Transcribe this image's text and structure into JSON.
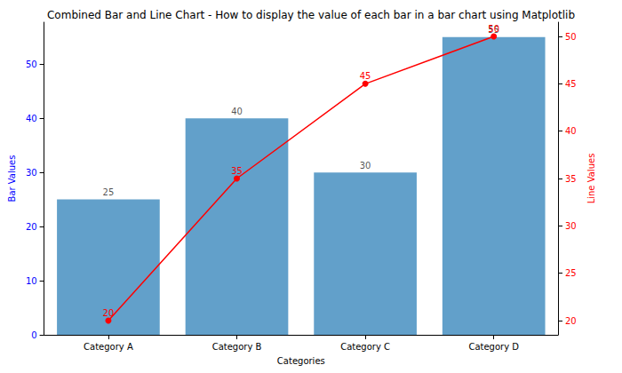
{
  "chart_data": {
    "type": "bar",
    "title": "Combined Bar and Line Chart - How to display the value of each bar in a bar chart using Matplotlib",
    "xlabel": "Categories",
    "ylabel": "Bar Values",
    "y2label": "Line Values",
    "categories": [
      "Category A",
      "Category B",
      "Category C",
      "Category D"
    ],
    "series": [
      {
        "type": "bar",
        "color": "#1f77b4",
        "values": [
          25,
          40,
          30,
          55
        ]
      },
      {
        "type": "line",
        "axis": "y2",
        "color": "#ff0000",
        "marker": "circle",
        "values": [
          20,
          35,
          45,
          50
        ]
      }
    ],
    "ylim": [
      0,
      57.75
    ],
    "yticks": [
      0,
      10,
      20,
      30,
      40,
      50
    ],
    "y2lim": [
      18.5,
      51.5
    ],
    "y2ticks": [
      20,
      25,
      30,
      35,
      40,
      45,
      50
    ],
    "data_labels": true,
    "grid": false,
    "tick_labels": true
  }
}
